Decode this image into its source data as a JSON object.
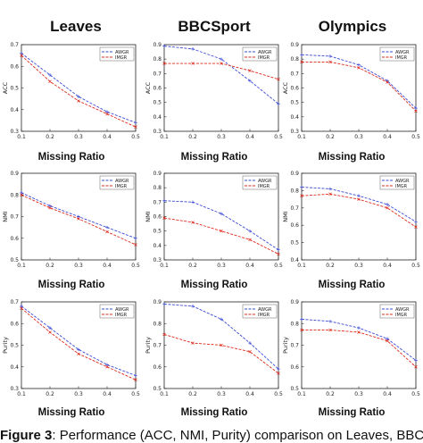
{
  "column_titles": [
    "Leaves",
    "BBCSport",
    "Olympics"
  ],
  "x_label": "Missing Ratio",
  "caption": {
    "prefix": "Figure 3",
    "text": ": Performance (ACC, NMI, Purity) comparison on Leaves, BBCSport and Olympics"
  },
  "colors": {
    "awgr": "#3b49d6",
    "imgr": "#e0281c",
    "frame": "#222222"
  },
  "chart_data": [
    {
      "type": "line",
      "id": "leaves-acc",
      "ylabel": "ACC",
      "x": [
        0.1,
        0.2,
        0.3,
        0.4,
        0.5
      ],
      "x_ticks": [
        "0.1",
        "0.2",
        "0.3",
        "0.4",
        "0.5"
      ],
      "xlim": [
        0.1,
        0.5
      ],
      "ylim": [
        0.3,
        0.7
      ],
      "y_ticks": [
        "0.3",
        "0.4",
        "0.5",
        "0.6",
        "0.7"
      ],
      "legend": "top-right",
      "grid": false,
      "series": [
        {
          "name": "AWGR",
          "values": [
            0.66,
            0.56,
            0.46,
            0.39,
            0.34
          ]
        },
        {
          "name": "IMGR",
          "values": [
            0.65,
            0.53,
            0.44,
            0.38,
            0.32
          ]
        }
      ]
    },
    {
      "type": "line",
      "id": "bbcsport-acc",
      "ylabel": "ACC",
      "x": [
        0.1,
        0.2,
        0.3,
        0.4,
        0.5
      ],
      "x_ticks": [
        "0.1",
        "0.2",
        "0.3",
        "0.4",
        "0.5"
      ],
      "xlim": [
        0.1,
        0.5
      ],
      "ylim": [
        0.3,
        0.9
      ],
      "y_ticks": [
        "0.3",
        "0.4",
        "0.5",
        "0.6",
        "0.7",
        "0.8",
        "0.9"
      ],
      "legend": "top-right",
      "grid": false,
      "series": [
        {
          "name": "AWGR",
          "values": [
            0.89,
            0.87,
            0.8,
            0.65,
            0.49
          ]
        },
        {
          "name": "IMGR",
          "values": [
            0.77,
            0.77,
            0.77,
            0.72,
            0.66
          ]
        }
      ]
    },
    {
      "type": "line",
      "id": "olympics-acc",
      "ylabel": "ACC",
      "x": [
        0.1,
        0.2,
        0.3,
        0.4,
        0.5
      ],
      "x_ticks": [
        "0.1",
        "0.2",
        "0.3",
        "0.4",
        "0.5"
      ],
      "xlim": [
        0.1,
        0.5
      ],
      "ylim": [
        0.3,
        0.9
      ],
      "y_ticks": [
        "0.3",
        "0.4",
        "0.5",
        "0.6",
        "0.7",
        "0.8",
        "0.9"
      ],
      "legend": "top-right",
      "grid": false,
      "series": [
        {
          "name": "AWGR",
          "values": [
            0.83,
            0.82,
            0.76,
            0.65,
            0.46
          ]
        },
        {
          "name": "IMGR",
          "values": [
            0.78,
            0.78,
            0.74,
            0.64,
            0.44
          ]
        }
      ]
    },
    {
      "type": "line",
      "id": "leaves-nmi",
      "ylabel": "NMI",
      "x": [
        0.1,
        0.2,
        0.3,
        0.4,
        0.5
      ],
      "x_ticks": [
        "0.1",
        "0.2",
        "0.3",
        "0.4",
        "0.5"
      ],
      "xlim": [
        0.1,
        0.5
      ],
      "ylim": [
        0.5,
        0.9
      ],
      "y_ticks": [
        "0.5",
        "0.6",
        "0.7",
        "0.8",
        "0.9"
      ],
      "legend": "top-right",
      "grid": false,
      "series": [
        {
          "name": "AWGR",
          "values": [
            0.81,
            0.75,
            0.7,
            0.65,
            0.6
          ]
        },
        {
          "name": "IMGR",
          "values": [
            0.8,
            0.74,
            0.69,
            0.63,
            0.57
          ]
        }
      ]
    },
    {
      "type": "line",
      "id": "bbcsport-nmi",
      "ylabel": "NMI",
      "x": [
        0.1,
        0.2,
        0.3,
        0.4,
        0.5
      ],
      "x_ticks": [
        "0.1",
        "0.2",
        "0.3",
        "0.4",
        "0.5"
      ],
      "xlim": [
        0.1,
        0.5
      ],
      "ylim": [
        0.3,
        0.9
      ],
      "y_ticks": [
        "0.3",
        "0.4",
        "0.5",
        "0.6",
        "0.7",
        "0.8",
        "0.9"
      ],
      "legend": "top-right",
      "grid": false,
      "series": [
        {
          "name": "AWGR",
          "values": [
            0.71,
            0.7,
            0.62,
            0.5,
            0.37
          ]
        },
        {
          "name": "IMGR",
          "values": [
            0.59,
            0.56,
            0.5,
            0.44,
            0.34
          ]
        }
      ]
    },
    {
      "type": "line",
      "id": "olympics-nmi",
      "ylabel": "NMI",
      "x": [
        0.1,
        0.2,
        0.3,
        0.4,
        0.5
      ],
      "x_ticks": [
        "0.1",
        "0.2",
        "0.3",
        "0.4",
        "0.5"
      ],
      "xlim": [
        0.1,
        0.5
      ],
      "ylim": [
        0.4,
        0.9
      ],
      "y_ticks": [
        "0.4",
        "0.5",
        "0.6",
        "0.7",
        "0.8",
        "0.9"
      ],
      "legend": "top-right",
      "grid": false,
      "series": [
        {
          "name": "AWGR",
          "values": [
            0.82,
            0.81,
            0.77,
            0.72,
            0.62
          ]
        },
        {
          "name": "IMGR",
          "values": [
            0.77,
            0.78,
            0.75,
            0.7,
            0.59
          ]
        }
      ]
    },
    {
      "type": "line",
      "id": "leaves-purity",
      "ylabel": "Purity",
      "x": [
        0.1,
        0.2,
        0.3,
        0.4,
        0.5
      ],
      "x_ticks": [
        "0.1",
        "0.2",
        "0.3",
        "0.4",
        "0.5"
      ],
      "xlim": [
        0.1,
        0.5
      ],
      "ylim": [
        0.3,
        0.7
      ],
      "y_ticks": [
        "0.3",
        "0.4",
        "0.5",
        "0.6",
        "0.7"
      ],
      "legend": "top-right",
      "grid": false,
      "series": [
        {
          "name": "AWGR",
          "values": [
            0.68,
            0.58,
            0.48,
            0.41,
            0.36
          ]
        },
        {
          "name": "IMGR",
          "values": [
            0.67,
            0.56,
            0.46,
            0.4,
            0.34
          ]
        }
      ]
    },
    {
      "type": "line",
      "id": "bbcsport-purity",
      "ylabel": "Purity",
      "x": [
        0.1,
        0.2,
        0.3,
        0.4,
        0.5
      ],
      "x_ticks": [
        "0.1",
        "0.2",
        "0.3",
        "0.4",
        "0.5"
      ],
      "xlim": [
        0.1,
        0.5
      ],
      "ylim": [
        0.5,
        0.9
      ],
      "y_ticks": [
        "0.5",
        "0.6",
        "0.7",
        "0.8",
        "0.9"
      ],
      "legend": "top-right",
      "grid": false,
      "series": [
        {
          "name": "AWGR",
          "values": [
            0.89,
            0.88,
            0.82,
            0.71,
            0.59
          ]
        },
        {
          "name": "IMGR",
          "values": [
            0.75,
            0.71,
            0.7,
            0.67,
            0.57
          ]
        }
      ]
    },
    {
      "type": "line",
      "id": "olympics-purity",
      "ylabel": "Purity",
      "x": [
        0.1,
        0.2,
        0.3,
        0.4,
        0.5
      ],
      "x_ticks": [
        "0.1",
        "0.2",
        "0.3",
        "0.4",
        "0.5"
      ],
      "xlim": [
        0.1,
        0.5
      ],
      "ylim": [
        0.5,
        0.9
      ],
      "y_ticks": [
        "0.5",
        "0.6",
        "0.7",
        "0.8",
        "0.9"
      ],
      "legend": "top-right",
      "grid": false,
      "series": [
        {
          "name": "AWGR",
          "values": [
            0.82,
            0.81,
            0.78,
            0.73,
            0.63
          ]
        },
        {
          "name": "IMGR",
          "values": [
            0.77,
            0.77,
            0.76,
            0.72,
            0.6
          ]
        }
      ]
    }
  ]
}
